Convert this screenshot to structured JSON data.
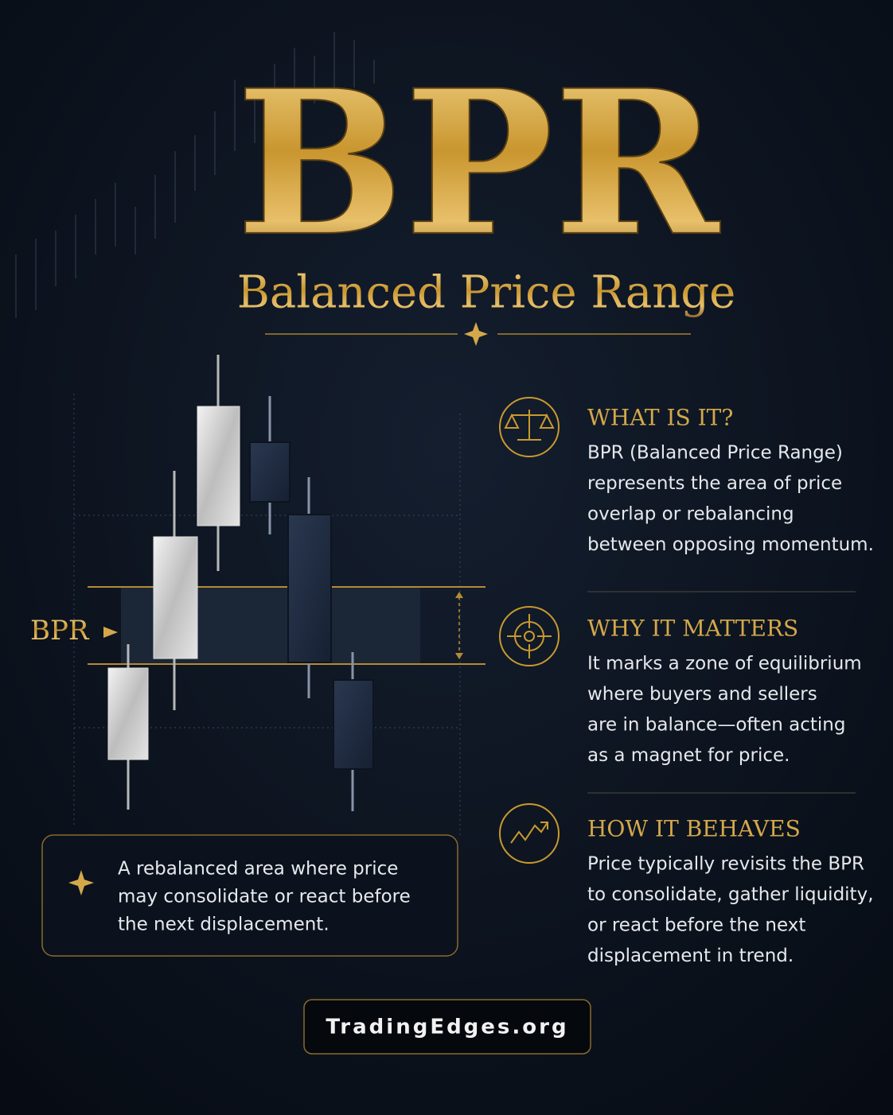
{
  "title": "BPR",
  "subtitle": "Balanced Price Range",
  "zone_label": "BPR",
  "note": {
    "lines": [
      "A rebalanced area where price",
      "may consolidate or react before",
      "the next displacement."
    ]
  },
  "sections": [
    {
      "heading": "WHAT IS IT?",
      "lines": [
        "BPR (Balanced Price Range)",
        "represents the area of price",
        "overlap or rebalancing",
        "between opposing momentum."
      ]
    },
    {
      "heading": "WHY IT MATTERS",
      "lines": [
        "It marks a zone of equilibrium",
        "where buyers and sellers",
        "are in balance—often acting",
        "as a magnet for price."
      ]
    },
    {
      "heading": "HOW IT BEHAVES",
      "lines": [
        "Price typically revisits the BPR",
        "to consolidate, gather liquidity,",
        "or react before the next",
        "displacement in trend."
      ]
    }
  ],
  "footer": "TradingEdges.org"
}
